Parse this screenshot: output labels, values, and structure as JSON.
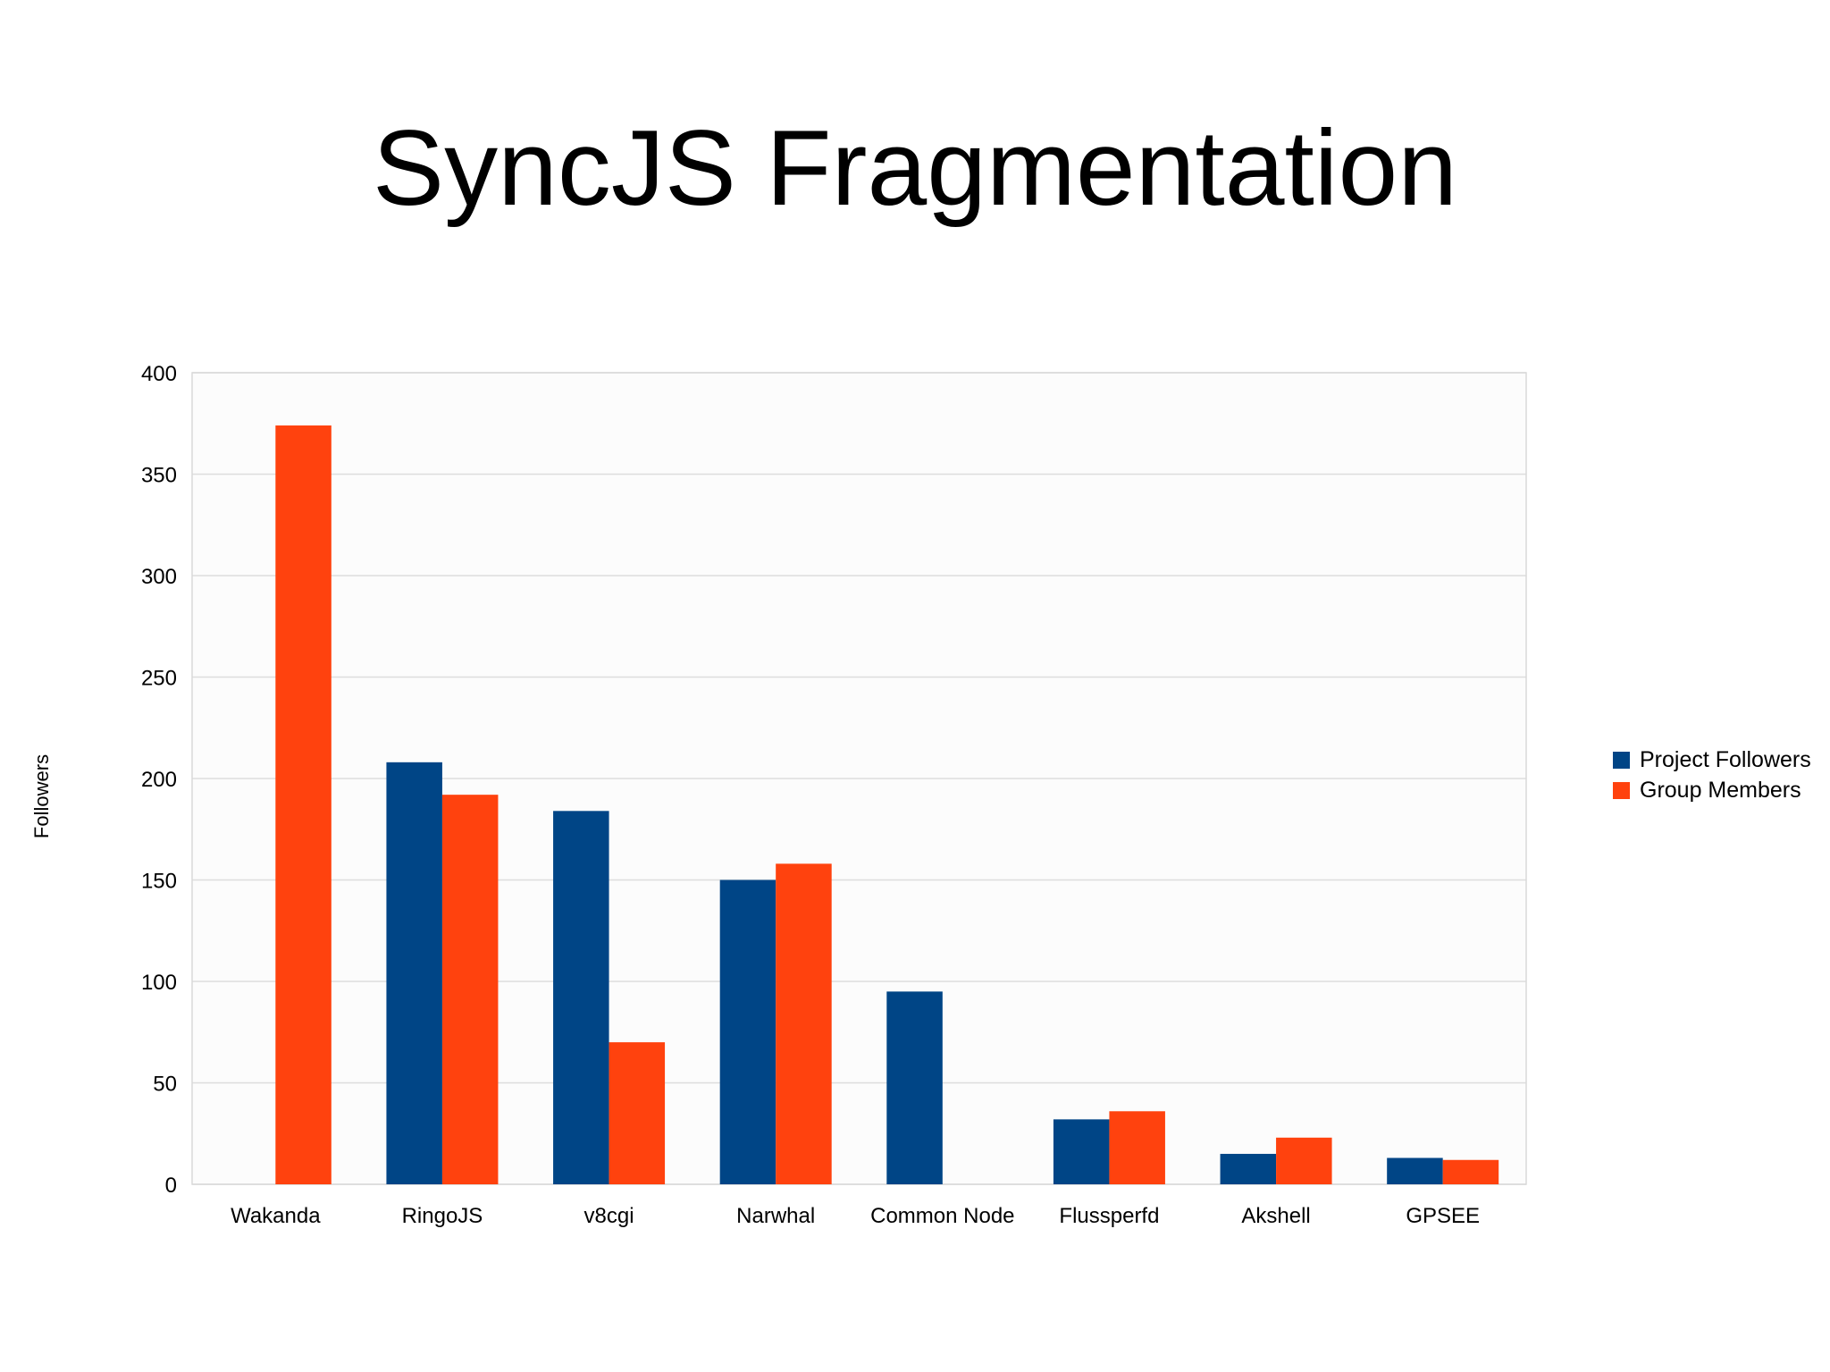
{
  "slide": {
    "title": "SyncJS Fragmentation"
  },
  "chart_data": {
    "type": "bar",
    "title": "",
    "xlabel": "",
    "ylabel": "Followers",
    "ylim": [
      0,
      400
    ],
    "yticks": [
      0,
      50,
      100,
      150,
      200,
      250,
      300,
      350,
      400
    ],
    "grid": true,
    "legend_position": "right",
    "categories": [
      "Wakanda",
      "RingoJS",
      "v8cgi",
      "Narwhal",
      "Common Node",
      "Flussperfd",
      "Akshell",
      "GPSEE"
    ],
    "series": [
      {
        "name": "Project Followers",
        "color": "#004586",
        "values": [
          0,
          208,
          184,
          150,
          95,
          32,
          15,
          13
        ]
      },
      {
        "name": "Group Members",
        "color": "#ff420e",
        "values": [
          374,
          192,
          70,
          158,
          0,
          36,
          23,
          12
        ]
      }
    ],
    "colors": {
      "plot_border": "#d9d9d9",
      "gridline": "#dddddd"
    }
  }
}
